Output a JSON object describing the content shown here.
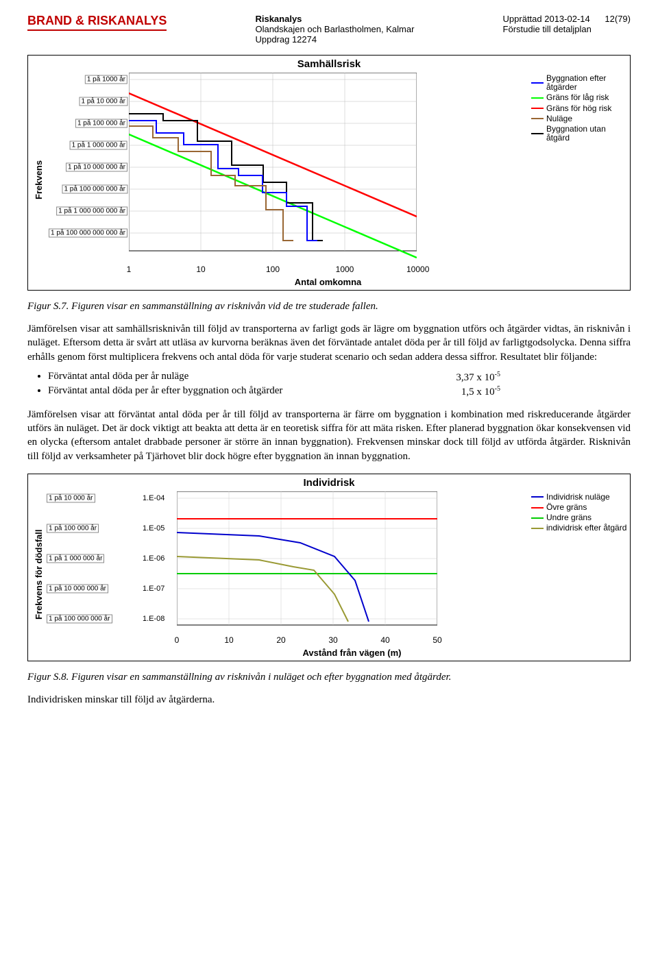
{
  "header": {
    "logo": "BRAND & RISKANALYS",
    "col1_l1": "Riskanalys",
    "col1_l2": "Olandskajen och Barlastholmen, Kalmar",
    "col1_l3": "Uppdrag 12274",
    "col2_l1": "Upprättad 2013-02-14",
    "col2_l2": "Förstudie till detaljplan",
    "page": "12(79)"
  },
  "chart1": {
    "title": "Samhällsrisk",
    "ylabel": "Frekvens",
    "xlabel": "Antal omkomna",
    "yticks": [
      "1 på 1000 år",
      "1 på 10 000 år",
      "1 på 100 000 år",
      "1 på 1 000 000 år",
      "1 på 10 000 000 år",
      "1 på 100 000 000 år",
      "1 på 1 000 000 000 år",
      "1 på 100 000 000 000 år"
    ],
    "xticks": [
      "1",
      "10",
      "100",
      "1000",
      "10000"
    ],
    "legend": [
      {
        "label": "Byggnation efter åtgärder",
        "color": "#0000ff"
      },
      {
        "label": "Gräns för låg risk",
        "color": "#00ff00"
      },
      {
        "label": "Gräns för hög risk",
        "color": "#ff0000"
      },
      {
        "label": "Nuläge",
        "color": "#996633"
      },
      {
        "label": "Byggnation utan åtgärd",
        "color": "#000000"
      }
    ],
    "red_line": [
      [
        0,
        30
      ],
      [
        420,
        210
      ]
    ],
    "green_line": [
      [
        0,
        90
      ],
      [
        420,
        270
      ]
    ],
    "step_blue": [
      [
        0,
        70
      ],
      [
        40,
        70
      ],
      [
        40,
        88
      ],
      [
        80,
        88
      ],
      [
        80,
        105
      ],
      [
        130,
        105
      ],
      [
        130,
        140
      ],
      [
        160,
        140
      ],
      [
        160,
        150
      ],
      [
        195,
        150
      ],
      [
        195,
        175
      ],
      [
        230,
        175
      ],
      [
        230,
        195
      ],
      [
        260,
        195
      ],
      [
        260,
        245
      ],
      [
        275,
        245
      ]
    ],
    "step_black": [
      [
        0,
        60
      ],
      [
        50,
        60
      ],
      [
        50,
        70
      ],
      [
        100,
        70
      ],
      [
        100,
        100
      ],
      [
        150,
        100
      ],
      [
        150,
        135
      ],
      [
        196,
        135
      ],
      [
        196,
        160
      ],
      [
        230,
        160
      ],
      [
        230,
        190
      ],
      [
        268,
        190
      ],
      [
        268,
        245
      ],
      [
        283,
        245
      ]
    ],
    "step_brown": [
      [
        0,
        78
      ],
      [
        35,
        78
      ],
      [
        35,
        95
      ],
      [
        72,
        95
      ],
      [
        72,
        115
      ],
      [
        120,
        115
      ],
      [
        120,
        150
      ],
      [
        155,
        150
      ],
      [
        155,
        165
      ],
      [
        200,
        165
      ],
      [
        200,
        200
      ],
      [
        225,
        200
      ],
      [
        225,
        245
      ],
      [
        240,
        245
      ]
    ]
  },
  "fig_s7": "Figur S.7. Figuren visar en sammanställning av risknivån vid de tre studerade fallen.",
  "para1": "Jämförelsen visar att samhällsrisknivån till följd av transporterna av farligt gods är lägre om byggnation utförs och åtgärder vidtas, än risknivån i nuläget. Eftersom detta är svårt att utläsa av kurvorna beräknas även det förväntade antalet döda per år till följd av farligtgodsolycka. Denna siffra erhålls genom först multiplicera frekvens och antal döda för varje studerat scenario och sedan addera dessa siffror. Resultatet blir följande:",
  "bullet1_label": "Förväntat antal döda per år nuläge",
  "bullet1_val": "3,37 x 10",
  "bullet1_exp": "-5",
  "bullet2_label": "Förväntat antal döda per år efter byggnation och åtgärder",
  "bullet2_val": "1,5 x 10",
  "bullet2_exp": "-5",
  "para2": "Jämförelsen visar att förväntat antal döda per år till följd av transporterna är färre om byggnation i kombination med riskreducerande åtgärder utförs än nuläget. Det är dock viktigt att beakta att detta är en teoretisk siffra för att mäta risken. Efter planerad byggnation ökar konsekvensen vid en olycka (eftersom antalet drabbade personer är större än innan byggnation). Frekvensen minskar dock till följd av utförda åtgärder. Risknivån till följd av verksamheter på Tjärhovet blir dock högre efter byggnation än innan byggnation.",
  "chart2": {
    "title": "Individrisk",
    "ylabel": "Frekvens för dödsfall",
    "xlabel": "Avstånd från vägen (m)",
    "yticks_left": [
      "1 på 10 000 år",
      "1 på 100 000 år",
      "1 på 1 000 000 år",
      "1 på 10 000 000 år",
      "1 på 100 000 000 år"
    ],
    "yticks_vals": [
      "1.E-04",
      "1.E-05",
      "1.E-06",
      "1.E-07",
      "1.E-08"
    ],
    "xticks": [
      "0",
      "10",
      "20",
      "30",
      "40",
      "50"
    ],
    "legend": [
      {
        "label": "Individrisk nuläge",
        "color": "#0000cc"
      },
      {
        "label": "Övre gräns",
        "color": "#ff0000"
      },
      {
        "label": "Undre gräns",
        "color": "#00cc00"
      },
      {
        "label": "individrisk efter åtgärd",
        "color": "#999933"
      }
    ],
    "red_y": 40,
    "green_y": 120,
    "blue_line": [
      [
        0,
        60
      ],
      [
        120,
        65
      ],
      [
        180,
        75
      ],
      [
        230,
        95
      ],
      [
        260,
        130
      ],
      [
        280,
        190
      ]
    ],
    "olive_line": [
      [
        0,
        95
      ],
      [
        120,
        100
      ],
      [
        170,
        110
      ],
      [
        200,
        115
      ],
      [
        230,
        150
      ],
      [
        250,
        190
      ]
    ]
  },
  "fig_s8": "Figur S.8. Figuren visar en sammanställning av risknivån i nuläget och efter byggnation med åtgärder.",
  "para3": "Individrisken minskar till följd av åtgärderna."
}
